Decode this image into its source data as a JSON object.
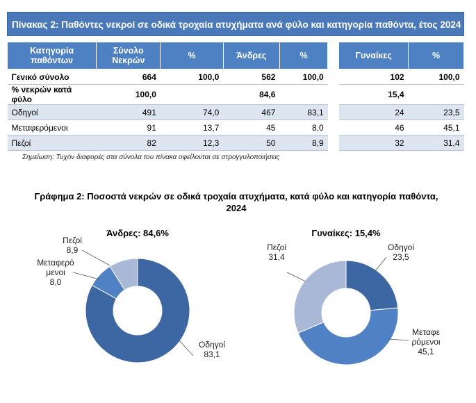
{
  "table": {
    "title": "Πίνακας 2: Παθόντες νεκροί σε οδικά τροχαία ατυχήματα ανά φύλο και κατηγορία παθόντα, έτος 2024",
    "headers": {
      "category": "Κατηγορία παθόντων",
      "total": "Σύνολο Νεκρών",
      "pct1": "%",
      "men": "Άνδρες",
      "pct2": "%",
      "women": "Γυναίκες",
      "pct3": "%"
    },
    "rows": [
      {
        "label": "Γενικό σύνολο",
        "total": "664",
        "total_pct": "100,0",
        "men": "562",
        "men_pct": "100,0",
        "women": "102",
        "women_pct": "100,0"
      },
      {
        "label": "% νεκρών κατά φύλο",
        "total": "100,0",
        "total_pct": "",
        "men": "84,6",
        "men_pct": "",
        "women": "15,4",
        "women_pct": ""
      },
      {
        "label": "Οδηγοί",
        "total": "491",
        "total_pct": "74,0",
        "men": "467",
        "men_pct": "83,1",
        "women": "24",
        "women_pct": "23,5"
      },
      {
        "label": "Μεταφερόμενοι",
        "total": "91",
        "total_pct": "13,7",
        "men": "45",
        "men_pct": "8,0",
        "women": "46",
        "women_pct": "45,1"
      },
      {
        "label": "Πεζοί",
        "total": "82",
        "total_pct": "12,3",
        "men": "50",
        "men_pct": "8,9",
        "women": "32",
        "women_pct": "31,4"
      }
    ],
    "note": "Σημείωση: Τυχόν διαφορές στα σύνολα του πίνακα οφείλονται σε στρογγυλοποιήσεις"
  },
  "chart": {
    "title_line1": "Γράφημα 2: Ποσοστά νεκρών σε οδικά τροχαία ατυχήματα, κατά φύλο και κατηγορία παθόντα,",
    "title_line2": "2024"
  },
  "chart_data": [
    {
      "type": "pie",
      "title": "Άνδρες: 84,6%",
      "categories": [
        "Οδηγοί",
        "Μεταφερόμενοι",
        "Πεζοί"
      ],
      "values": [
        83.1,
        8.0,
        8.9
      ],
      "colors": [
        "#3d67a3",
        "#4f81c4",
        "#a9b8d6"
      ],
      "labels": [
        {
          "name_lines": [
            "Οδηγοί"
          ],
          "value": "83,1"
        },
        {
          "name_lines": [
            "Μεταφερό",
            "μενοι"
          ],
          "value": "8,0"
        },
        {
          "name_lines": [
            "Πεζοί"
          ],
          "value": "8,9"
        }
      ]
    },
    {
      "type": "pie",
      "title": "Γυναίκες: 15,4%",
      "categories": [
        "Οδηγοί",
        "Μεταφερόμενοι",
        "Πεζοί"
      ],
      "values": [
        23.5,
        45.1,
        31.4
      ],
      "colors": [
        "#3d67a3",
        "#4f81c4",
        "#a9b8d6"
      ],
      "labels": [
        {
          "name_lines": [
            "Οδηγοί"
          ],
          "value": "23,5"
        },
        {
          "name_lines": [
            "Μεταφε",
            "ρόμενοι"
          ],
          "value": "45,1"
        },
        {
          "name_lines": [
            "Πεζοί"
          ],
          "value": "31,4"
        }
      ]
    }
  ]
}
